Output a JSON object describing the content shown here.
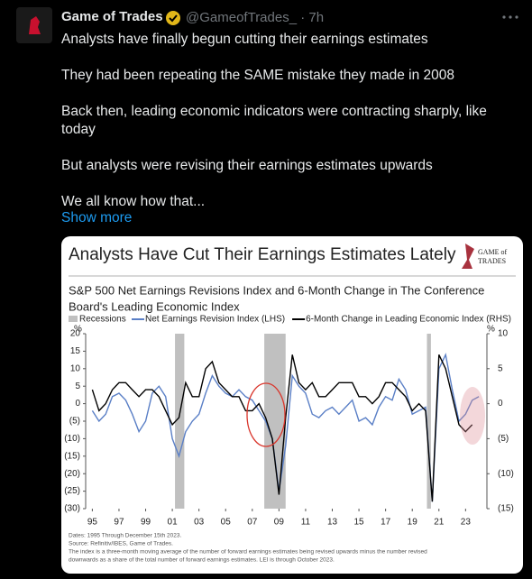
{
  "tweet": {
    "name": "Game of Trades",
    "handle": "@GameofTrades_",
    "time": "7h",
    "paragraphs": [
      "Analysts have finally begun cutting their earnings estimates",
      "They had been repeating the SAME mistake they made in 2008",
      "Back then, leading economic indicators were contracting sharply, like today",
      "But analysts were revising their earnings estimates upwards",
      "We all know how that..."
    ],
    "show_more": "Show more"
  },
  "logo": {
    "line1": "GAME of",
    "line2": "TRADES"
  },
  "chart_data": {
    "type": "line",
    "title": "Analysts Have Cut Their Earnings Estimates Lately",
    "subtitle": [
      "S&P 500 Net Earnings Revisions Index and 6-Month Change in The Conference",
      "Board's Leading Economic Index"
    ],
    "ylabel": "%",
    "y2label": "%",
    "recessions": {
      "name": "Recessions",
      "color": "#c0c0c0",
      "spans": [
        [
          2001.2,
          2001.9
        ],
        [
          2007.9,
          2009.5
        ],
        [
          2020.1,
          2020.4
        ]
      ]
    },
    "x": [
      1995,
      1995.5,
      1996,
      1996.5,
      1997,
      1997.5,
      1998,
      1998.5,
      1999,
      1999.5,
      2000,
      2000.5,
      2001,
      2001.5,
      2002,
      2002.5,
      2003,
      2003.5,
      2004,
      2004.5,
      2005,
      2005.5,
      2006,
      2006.5,
      2007,
      2007.5,
      2008,
      2008.5,
      2009,
      2009.5,
      2010,
      2010.5,
      2011,
      2011.5,
      2012,
      2012.5,
      2013,
      2013.5,
      2014,
      2014.5,
      2015,
      2015.5,
      2016,
      2016.5,
      2017,
      2017.5,
      2018,
      2018.5,
      2019,
      2019.5,
      2020,
      2020.5,
      2021,
      2021.5,
      2022,
      2022.5,
      2023,
      2023.5,
      2024
    ],
    "series": [
      {
        "name": "Net Earnings Revision Index (LHS)",
        "color": "#5a7fc6",
        "values": [
          -2,
          -5,
          -3,
          2,
          3,
          1,
          -3,
          -8,
          -5,
          3,
          5,
          2,
          -10,
          -15,
          -8,
          -5,
          -3,
          3,
          8,
          5,
          3,
          2,
          4,
          2,
          1,
          -2,
          -5,
          -10,
          -25,
          -12,
          8,
          5,
          3,
          -3,
          -4,
          -2,
          -1,
          -3,
          -1,
          1,
          -5,
          -4,
          -6,
          -1,
          2,
          1,
          7,
          4,
          -3,
          -2,
          -1,
          -28,
          10,
          14,
          4,
          -5,
          -3,
          1,
          2
        ]
      },
      {
        "name": "6-Month Change in Leading Economic Index (RHS)",
        "color": "#000000",
        "axis": "y2",
        "values": [
          2,
          -1,
          0,
          2,
          3,
          3,
          2,
          1,
          2,
          2,
          1,
          -1,
          -3,
          -2,
          3,
          1,
          1,
          5,
          6,
          3,
          2,
          1,
          1,
          -1,
          -1,
          0,
          -2,
          -5,
          -13,
          -2,
          7,
          3,
          2,
          3,
          1,
          1,
          2,
          3,
          3,
          3,
          1,
          1,
          0,
          1,
          3,
          3,
          2,
          1,
          -1,
          0,
          -1,
          -14,
          7,
          5,
          1,
          -3,
          -4,
          -3,
          null
        ]
      }
    ],
    "xlim": [
      1994.5,
      2024.6
    ],
    "xticks": [
      {
        "value": 1995,
        "label": "95"
      },
      {
        "value": 1997,
        "label": "97"
      },
      {
        "value": 1999,
        "label": "99"
      },
      {
        "value": 2001,
        "label": "01"
      },
      {
        "value": 2003,
        "label": "03"
      },
      {
        "value": 2005,
        "label": "05"
      },
      {
        "value": 2007,
        "label": "07"
      },
      {
        "value": 2009,
        "label": "09"
      },
      {
        "value": 2011,
        "label": "11"
      },
      {
        "value": 2013,
        "label": "13"
      },
      {
        "value": 2015,
        "label": "15"
      },
      {
        "value": 2017,
        "label": "17"
      },
      {
        "value": 2019,
        "label": "19"
      },
      {
        "value": 2021,
        "label": "21"
      },
      {
        "value": 2023,
        "label": "23"
      }
    ],
    "ylim": [
      -30,
      20
    ],
    "yticks": [
      20,
      15,
      10,
      5,
      0,
      {
        "value": -5,
        "label": "(5)"
      },
      {
        "value": -10,
        "label": "(10)"
      },
      {
        "value": -15,
        "label": "(15)"
      },
      {
        "value": -20,
        "label": "(20)"
      },
      {
        "value": -25,
        "label": "(25)"
      },
      {
        "value": -30,
        "label": "(30)"
      }
    ],
    "y2lim": [
      -15,
      10
    ],
    "y2ticks": [
      10,
      5,
      0,
      {
        "value": -5,
        "label": "(5)"
      },
      {
        "value": -10,
        "label": "(10)"
      },
      {
        "value": -15,
        "label": "(15)"
      }
    ],
    "footnotes": [
      "Dates: 1995 Through December 15th 2023.",
      "Source: Refinitiv/IBES, Game of Trades.",
      "The index is a three-month moving average of the number of forward earnings estimates being revised upwards minus the number revised",
      "downwards as a share of the total number of forward earnings estimates. LEI is through October 2023."
    ]
  }
}
